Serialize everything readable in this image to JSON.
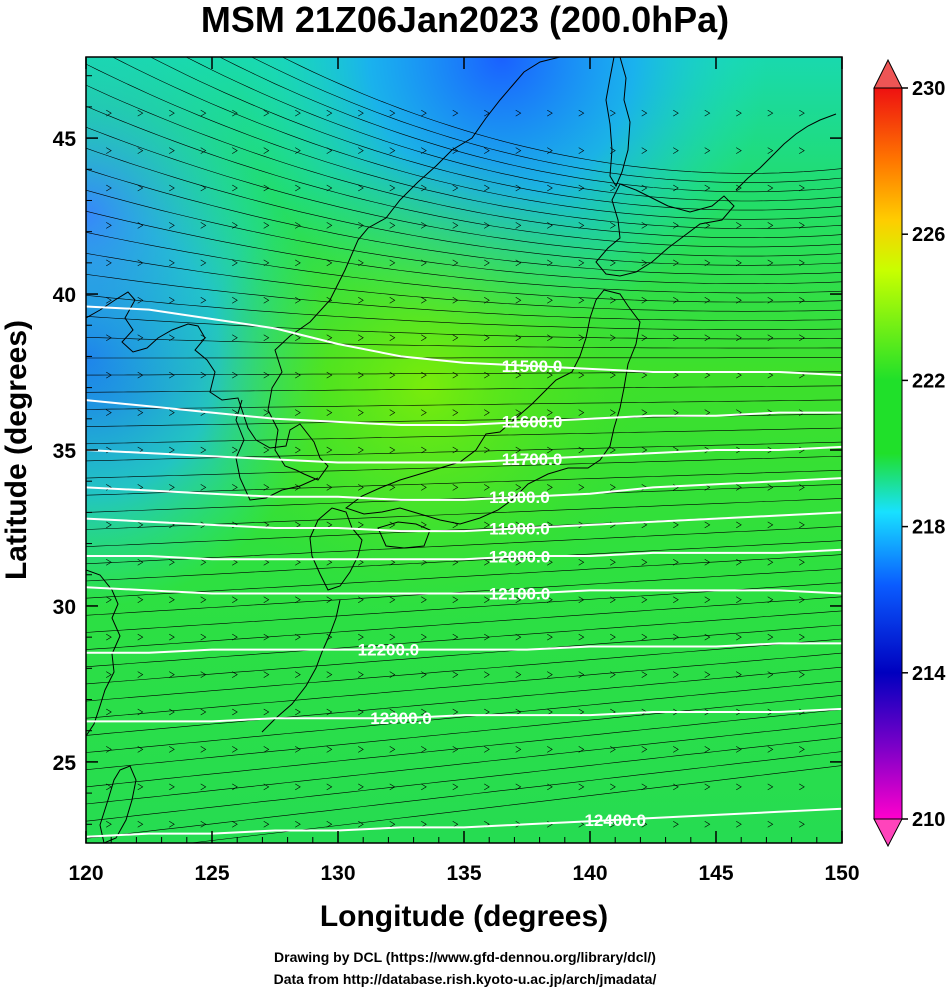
{
  "title": "MSM 21Z06Jan2023 (200.0hPa)",
  "xlabel": "Longitude (degrees)",
  "ylabel": "Latitude  (degrees)",
  "credit_line1": "Drawing by DCL (https://www.gfd-dennou.org/library/dcl/)",
  "credit_line2": "Data from http://database.rish.kyoto-u.ac.jp/arch/jmadata/",
  "map_data": {
    "type": "contour-map",
    "xlim": [
      120,
      150
    ],
    "ylim": [
      22.4,
      47.6
    ],
    "xticks": [
      120,
      125,
      130,
      135,
      140,
      145,
      150
    ],
    "yticks": [
      25,
      30,
      35,
      40,
      45
    ],
    "shading_range": [
      210,
      230
    ],
    "colorbar_ticks": [
      210,
      214,
      218,
      222,
      226,
      230
    ],
    "contours": [
      {
        "label": "11500.0",
        "label_lon": 137.7,
        "lats": [
          39.6,
          39.5,
          39.2,
          38.9,
          38.4,
          38.0,
          37.8,
          37.7,
          37.6,
          37.5,
          37.5,
          37.5,
          37.4
        ]
      },
      {
        "label": "11600.0",
        "label_lon": 137.7,
        "lats": [
          36.6,
          36.4,
          36.2,
          36.0,
          35.9,
          35.8,
          35.8,
          35.9,
          36.0,
          36.1,
          36.1,
          36.2,
          36.2
        ]
      },
      {
        "label": "11700.0",
        "label_lon": 137.7,
        "lats": [
          35.0,
          34.9,
          34.8,
          34.7,
          34.6,
          34.6,
          34.6,
          34.7,
          34.8,
          34.9,
          35.0,
          35.0,
          35.1
        ]
      },
      {
        "label": "11800.0",
        "label_lon": 137.2,
        "lats": [
          33.8,
          33.7,
          33.6,
          33.5,
          33.5,
          33.4,
          33.4,
          33.5,
          33.6,
          33.8,
          33.9,
          34.0,
          34.1
        ]
      },
      {
        "label": "11900.0",
        "label_lon": 137.2,
        "lats": [
          32.8,
          32.7,
          32.6,
          32.5,
          32.5,
          32.4,
          32.4,
          32.5,
          32.6,
          32.7,
          32.8,
          32.9,
          33.0
        ]
      },
      {
        "label": "12000.0",
        "label_lon": 137.2,
        "lats": [
          31.6,
          31.6,
          31.5,
          31.5,
          31.5,
          31.5,
          31.5,
          31.6,
          31.6,
          31.7,
          31.7,
          31.7,
          31.8
        ]
      },
      {
        "label": "12100.0",
        "label_lon": 137.2,
        "lats": [
          30.6,
          30.5,
          30.4,
          30.4,
          30.4,
          30.4,
          30.4,
          30.4,
          30.5,
          30.5,
          30.5,
          30.5,
          30.4
        ]
      },
      {
        "label": "12200.0",
        "label_lon": 132.0,
        "lats": [
          28.5,
          28.5,
          28.6,
          28.6,
          28.6,
          28.6,
          28.6,
          28.6,
          28.7,
          28.7,
          28.7,
          28.8,
          28.8
        ]
      },
      {
        "label": "12300.0",
        "label_lon": 132.5,
        "lats": [
          26.3,
          26.3,
          26.3,
          26.4,
          26.4,
          26.4,
          26.5,
          26.5,
          26.5,
          26.6,
          26.6,
          26.6,
          26.7
        ]
      },
      {
        "label": "12400.0",
        "label_lon": 141.0,
        "lats": [
          22.6,
          22.7,
          22.7,
          22.8,
          22.8,
          22.9,
          22.9,
          23.0,
          23.1,
          23.2,
          23.3,
          23.4,
          23.5
        ]
      }
    ],
    "colors": {
      "stops": [
        "#ff00cc",
        "#7a00c8",
        "#0000bf",
        "#0a5cff",
        "#18e1ff",
        "#20e02a",
        "#c8ff00",
        "#ffcc00",
        "#ff7700",
        "#ee1111"
      ],
      "contour_line": "#ffffff",
      "coast": "#000000",
      "vector": "#000000"
    }
  }
}
